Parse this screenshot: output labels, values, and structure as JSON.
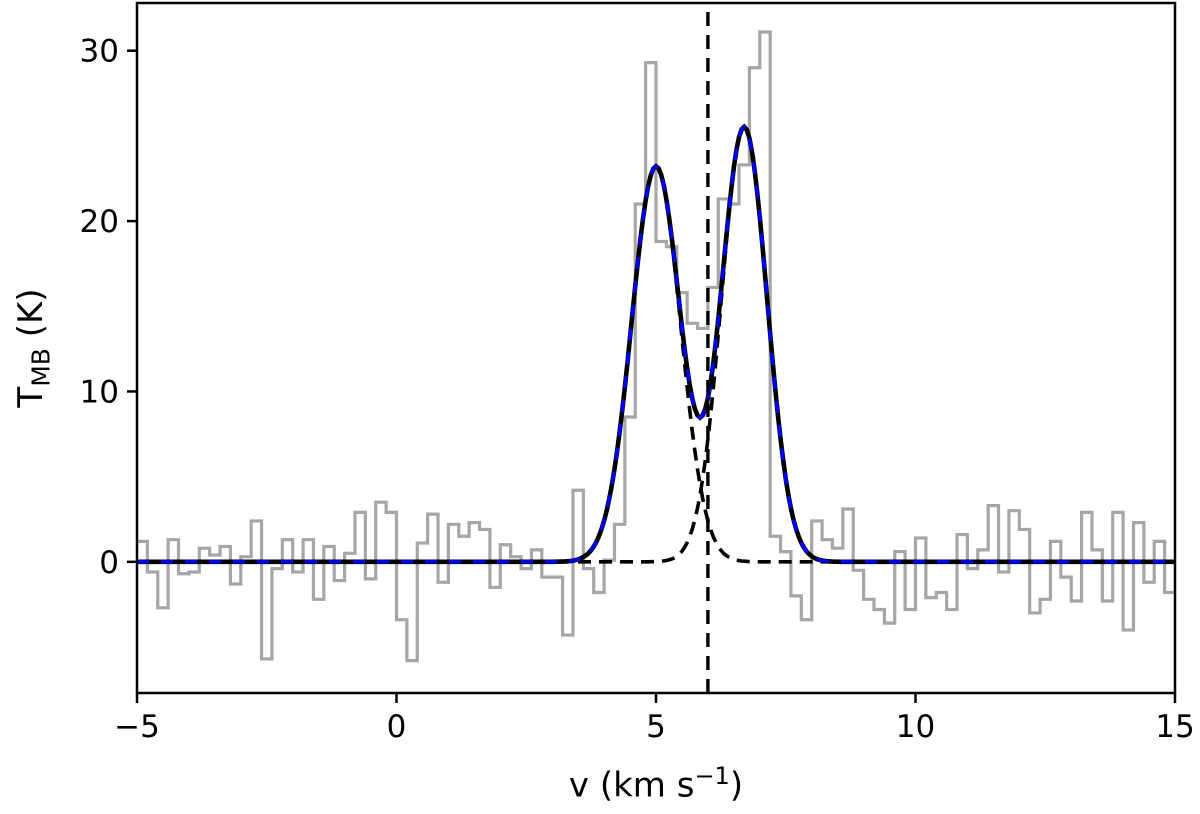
{
  "labels": {
    "x_prefix": "v (km s",
    "x_sup": "−1",
    "x_suffix": ")",
    "y_prefix": "T",
    "y_sub": "MB",
    "y_suffix": " (K)"
  },
  "chart_data": {
    "type": "line",
    "title": "",
    "xlabel": "v (km s⁻¹)",
    "ylabel": "T_MB (K)",
    "xlim": [
      -5,
      15
    ],
    "ylim": [
      -7.7,
      32.8
    ],
    "xticks": {
      "values": [
        -5,
        0,
        5,
        10,
        15
      ],
      "labels": [
        "−5",
        "0",
        "5",
        "10",
        "15"
      ]
    },
    "yticks": {
      "values": [
        0,
        10,
        20,
        30
      ],
      "labels": [
        "0",
        "10",
        "20",
        "30"
      ]
    },
    "grid": false,
    "legend": false,
    "colors": {
      "histogram": "#a6a6a6",
      "fit_total": "#000000",
      "fit_total_overlay": "#0000ff",
      "fit_components": "#000000",
      "vline": "#000000",
      "axes": "#000000"
    },
    "histogram": {
      "channel_width": 0.2,
      "v_centers": [
        -4.9,
        -4.7,
        -4.5,
        -4.3,
        -4.1,
        -3.9,
        -3.7,
        -3.5,
        -3.3,
        -3.1,
        -2.9,
        -2.7,
        -2.5,
        -2.3,
        -2.1,
        -1.9,
        -1.7,
        -1.5,
        -1.3,
        -1.1,
        -0.9,
        -0.7,
        -0.5,
        -0.3,
        -0.1,
        0.1,
        0.3,
        0.5,
        0.7,
        0.9,
        1.1,
        1.3,
        1.5,
        1.7,
        1.9,
        2.1,
        2.3,
        2.5,
        2.7,
        2.9,
        3.1,
        3.3,
        3.5,
        3.7,
        3.9,
        4.1,
        4.3,
        4.5,
        4.7,
        4.9,
        5.1,
        5.3,
        5.5,
        5.7,
        5.9,
        6.1,
        6.3,
        6.5,
        6.7,
        6.9,
        7.1,
        7.3,
        7.5,
        7.7,
        7.9,
        8.1,
        8.3,
        8.5,
        8.7,
        8.9,
        9.1,
        9.3,
        9.5,
        9.7,
        9.9,
        10.1,
        10.3,
        10.5,
        10.7,
        10.9,
        11.1,
        11.3,
        11.5,
        11.7,
        11.9,
        12.1,
        12.3,
        12.5,
        12.7,
        12.9,
        13.1,
        13.3,
        13.5,
        13.7,
        13.9,
        14.1,
        14.3,
        14.5,
        14.7,
        14.9
      ],
      "T_values": [
        1.2,
        -0.6,
        -2.7,
        1.3,
        -0.7,
        -0.6,
        0.8,
        0.4,
        0.9,
        -1.3,
        0.3,
        2.4,
        -5.7,
        -0.4,
        1.3,
        -0.6,
        1.3,
        -2.2,
        0.9,
        -1.1,
        0.5,
        2.9,
        -1.0,
        3.5,
        2.9,
        -3.4,
        -5.8,
        1.1,
        2.8,
        -1.2,
        2.2,
        1.5,
        2.3,
        1.9,
        -1.5,
        1.0,
        0.3,
        -0.4,
        0.7,
        -0.9,
        -0.9,
        -4.3,
        4.2,
        -0.4,
        -1.8,
        0.1,
        2.2,
        8.5,
        21.0,
        29.3,
        18.8,
        18.5,
        15.8,
        14.0,
        13.7,
        16.1,
        21.3,
        21.0,
        23.3,
        29.0,
        31.1,
        1.5,
        0.6,
        -2.0,
        -3.4,
        2.4,
        1.3,
        0.8,
        3.1,
        -0.5,
        -2.2,
        -2.8,
        -3.6,
        0.6,
        -2.8,
        1.4,
        -2.1,
        -1.8,
        -2.8,
        1.6,
        -0.4,
        0.7,
        3.3,
        -0.6,
        3.0,
        1.9,
        -3.0,
        -2.2,
        1.2,
        -0.9,
        -2.3,
        2.9,
        0.7,
        -2.3,
        2.9,
        -4.0,
        2.3,
        -1.2,
        1.2,
        -1.8
      ]
    },
    "fit_components": [
      {
        "name": "gaussian-1",
        "amplitude": 23.2,
        "center": 5.0,
        "sigma": 0.47,
        "fwhm": 1.11,
        "line_style": "dashed"
      },
      {
        "name": "gaussian-2",
        "amplitude": 25.5,
        "center": 6.7,
        "sigma": 0.44,
        "fwhm": 1.04,
        "line_style": "dashed"
      }
    ],
    "total_fit": {
      "definition": "sum of gaussian-1 and gaussian-2",
      "peak1": {
        "v": 5.0,
        "T": 23.2
      },
      "peak2": {
        "v": 6.7,
        "T": 25.5
      },
      "dip": {
        "v": 5.9,
        "T": 8.7
      },
      "line_style": "black solid with blue dashed overlay"
    },
    "vline": {
      "v": 6.0,
      "line_style": "dashed",
      "extent": "full height"
    }
  }
}
